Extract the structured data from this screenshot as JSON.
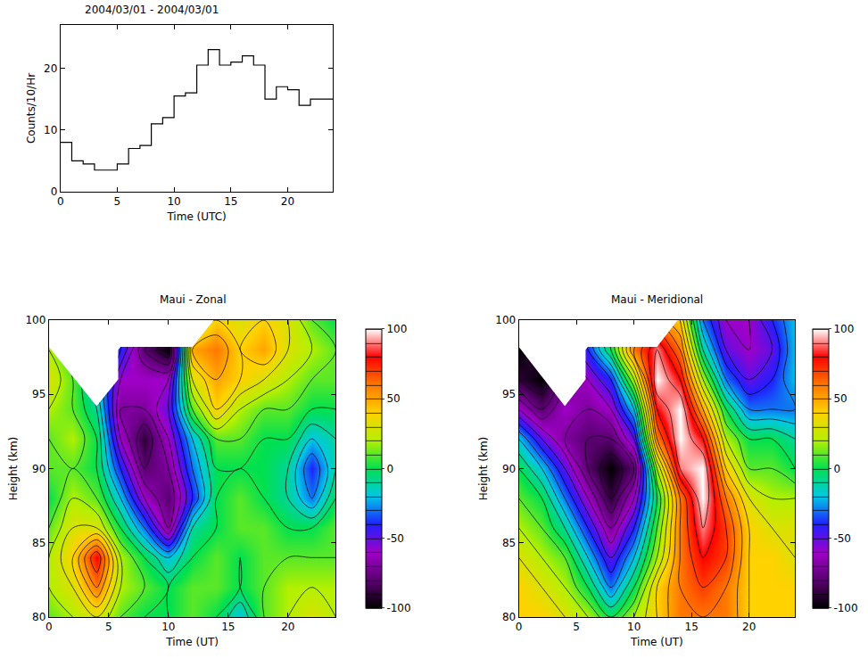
{
  "chart_data": [
    {
      "type": "histogram",
      "title": "2004/03/01 - 2004/03/01",
      "x_label": "Time (UTC)",
      "y_label": "Counts/10/Hr",
      "bins": [
        0,
        1,
        2,
        3,
        4,
        5,
        6,
        7,
        8,
        9,
        10,
        11,
        12,
        13,
        14,
        15,
        16,
        17,
        18,
        19,
        20,
        21,
        22,
        23,
        24
      ],
      "values": [
        8,
        5,
        4.5,
        3.5,
        3.5,
        4.5,
        7,
        7.5,
        11,
        12,
        15.5,
        16,
        20.5,
        23,
        20.5,
        21,
        22,
        20.5,
        15,
        17,
        16.5,
        14,
        15,
        15
      ],
      "color": "#000000",
      "xlim": [
        0,
        24
      ],
      "xticks": [
        0,
        5,
        10,
        15,
        20
      ],
      "ylim": [
        0,
        27
      ],
      "yticks": [
        0,
        10,
        20
      ]
    },
    {
      "type": "contour",
      "title": "Maui - Zonal",
      "x_label": "Time (UT)",
      "y_label": "Height (km)",
      "x": [
        0,
        2,
        4,
        6,
        8,
        10,
        12,
        14,
        16,
        18,
        20,
        22,
        24
      ],
      "y": [
        80,
        82,
        84,
        86,
        88,
        90,
        92,
        94,
        96,
        98,
        100
      ],
      "z": [
        [
          10,
          20,
          30,
          10,
          0,
          0,
          10,
          0,
          -20,
          10,
          20,
          30,
          20
        ],
        [
          20,
          30,
          60,
          20,
          10,
          0,
          10,
          10,
          0,
          10,
          20,
          20,
          20
        ],
        [
          20,
          40,
          80,
          20,
          0,
          -20,
          0,
          10,
          0,
          10,
          10,
          10,
          10
        ],
        [
          10,
          30,
          30,
          0,
          -30,
          -70,
          -10,
          0,
          10,
          10,
          0,
          0,
          10
        ],
        [
          0,
          20,
          10,
          -20,
          -60,
          -80,
          -40,
          0,
          10,
          0,
          -10,
          -30,
          0
        ],
        [
          10,
          10,
          0,
          -40,
          -80,
          -70,
          -30,
          0,
          0,
          0,
          -10,
          -40,
          -10
        ],
        [
          10,
          20,
          0,
          -60,
          -90,
          -60,
          -20,
          10,
          10,
          0,
          0,
          -20,
          -10
        ],
        [
          20,
          10,
          -10,
          -70,
          -70,
          -50,
          10,
          40,
          20,
          10,
          10,
          0,
          0
        ],
        [
          30,
          10,
          null,
          -60,
          -60,
          -60,
          30,
          50,
          40,
          30,
          20,
          10,
          10
        ],
        [
          20,
          null,
          null,
          -40,
          -80,
          -100,
          50,
          60,
          40,
          50,
          30,
          20,
          10
        ],
        [
          null,
          null,
          null,
          null,
          null,
          null,
          null,
          40,
          30,
          40,
          30,
          10,
          0
        ]
      ],
      "xlim": [
        0,
        24
      ],
      "xticks": [
        0,
        5,
        10,
        15,
        20
      ],
      "ylim": [
        80,
        100
      ],
      "yticks": [
        80,
        85,
        90,
        95,
        100
      ],
      "colorbar": {
        "range": [
          -100,
          100
        ],
        "ticks": [
          -100,
          -50,
          0,
          50,
          100
        ]
      }
    },
    {
      "type": "contour",
      "title": "Maui - Meridional",
      "x_label": "Time (UT)",
      "y_label": "Height (km)",
      "x": [
        0,
        2,
        4,
        6,
        8,
        10,
        12,
        14,
        16,
        18,
        20,
        22,
        24
      ],
      "y": [
        80,
        82,
        84,
        86,
        88,
        90,
        92,
        94,
        96,
        98,
        100
      ],
      "z": [
        [
          40,
          40,
          30,
          20,
          0,
          20,
          40,
          60,
          60,
          60,
          40,
          40,
          40
        ],
        [
          40,
          30,
          20,
          0,
          -30,
          0,
          40,
          60,
          70,
          60,
          40,
          40,
          40
        ],
        [
          30,
          20,
          10,
          -20,
          -50,
          -20,
          20,
          60,
          80,
          70,
          40,
          40,
          30
        ],
        [
          20,
          10,
          -10,
          -40,
          -70,
          -40,
          10,
          60,
          90,
          70,
          40,
          30,
          30
        ],
        [
          10,
          0,
          -30,
          -60,
          -90,
          -60,
          0,
          60,
          100,
          60,
          30,
          20,
          20
        ],
        [
          0,
          -20,
          -50,
          -80,
          -100,
          -80,
          20,
          90,
          100,
          40,
          10,
          10,
          0
        ],
        [
          -20,
          -50,
          -70,
          -80,
          -80,
          -50,
          60,
          100,
          80,
          20,
          0,
          0,
          -10
        ],
        [
          -60,
          -80,
          -60,
          -70,
          -60,
          -20,
          80,
          100,
          50,
          0,
          -30,
          -30,
          -30
        ],
        [
          -90,
          -100,
          null,
          -60,
          -40,
          20,
          100,
          80,
          20,
          -30,
          -50,
          -40,
          -20
        ],
        [
          -100,
          null,
          null,
          -40,
          0,
          60,
          90,
          60,
          -10,
          -50,
          -60,
          -50,
          -20
        ],
        [
          null,
          null,
          null,
          null,
          null,
          null,
          null,
          40,
          -30,
          -60,
          -60,
          -40,
          -20
        ]
      ],
      "xlim": [
        0,
        24
      ],
      "xticks": [
        0,
        5,
        10,
        15,
        20
      ],
      "ylim": [
        80,
        100
      ],
      "yticks": [
        80,
        85,
        90,
        95,
        100
      ],
      "colorbar": {
        "range": [
          -100,
          100
        ],
        "ticks": [
          -100,
          -50,
          0,
          50,
          100
        ]
      }
    }
  ]
}
